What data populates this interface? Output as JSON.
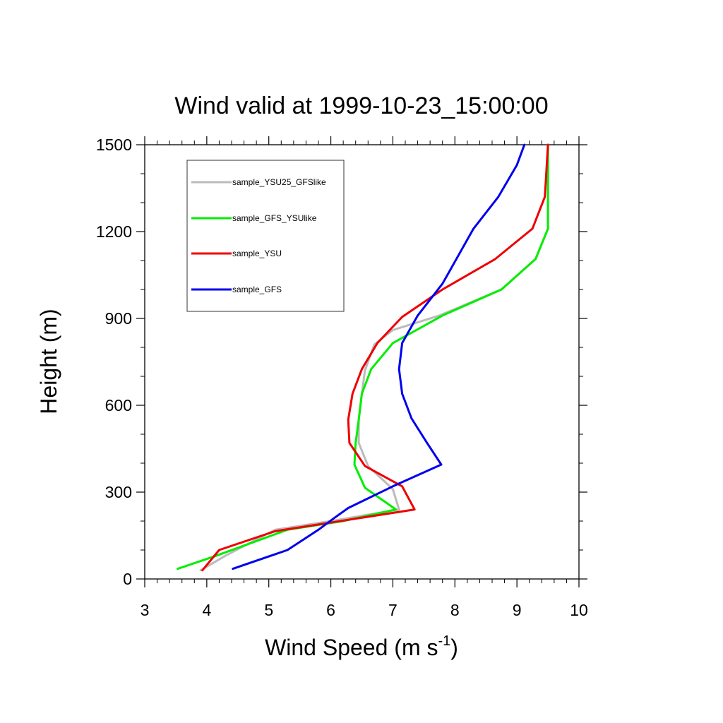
{
  "chart_data": {
    "type": "line",
    "title": "Wind valid at 1999-10-23_15:00:00",
    "xlabel": "Wind Speed (m s",
    "xlabel_sup": "-1",
    "xlabel_end": ")",
    "ylabel": "Height (m)",
    "xlim": [
      3,
      10
    ],
    "ylim": [
      0,
      1500
    ],
    "xticks": [
      "3",
      "4",
      "5",
      "6",
      "7",
      "8",
      "9",
      "10"
    ],
    "yticks": [
      "0",
      "300",
      "600",
      "900",
      "1200",
      "1500"
    ],
    "grid": false,
    "legend_position": "top-left",
    "series": [
      {
        "name": "sample_YSU25_GFSlike",
        "color": "#bbbbbb",
        "x": [
          3.9,
          4.3,
          5.1,
          6.0,
          7.1,
          7.0,
          6.6,
          6.45,
          6.45,
          6.5,
          6.55,
          6.7,
          7.0,
          7.75,
          8.75,
          9.3,
          9.5,
          9.5,
          9.5
        ],
        "y": [
          30,
          80,
          170,
          200,
          240,
          310,
          390,
          470,
          550,
          640,
          720,
          810,
          860,
          910,
          1000,
          1105,
          1210,
          1320,
          1500
        ]
      },
      {
        "name": "sample_GFS_YSUlike",
        "color": "#00ee00",
        "x": [
          3.53,
          4.15,
          5.3,
          6.2,
          7.05,
          6.55,
          6.38,
          6.4,
          6.45,
          6.5,
          6.65,
          7.0,
          7.8,
          8.75,
          9.3,
          9.5,
          9.5
        ],
        "y": [
          35,
          80,
          170,
          200,
          240,
          315,
          395,
          470,
          550,
          640,
          725,
          815,
          910,
          1000,
          1105,
          1210,
          1500
        ]
      },
      {
        "name": "sample_YSU",
        "color": "#ee0000",
        "x": [
          3.93,
          4.2,
          5.1,
          7.35,
          7.15,
          6.55,
          6.3,
          6.28,
          6.35,
          6.5,
          6.75,
          7.15,
          7.8,
          8.65,
          9.25,
          9.45,
          9.5
        ],
        "y": [
          30,
          100,
          165,
          240,
          320,
          390,
          470,
          550,
          640,
          725,
          815,
          905,
          1000,
          1105,
          1210,
          1320,
          1500
        ]
      },
      {
        "name": "sample_GFS",
        "color": "#0000ee",
        "x": [
          4.42,
          5.3,
          5.8,
          6.05,
          6.28,
          7.0,
          7.78,
          7.55,
          7.3,
          7.15,
          7.1,
          7.15,
          7.4,
          7.8,
          8.3,
          8.7,
          9.0,
          9.12
        ],
        "y": [
          35,
          100,
          170,
          210,
          245,
          320,
          395,
          470,
          555,
          640,
          725,
          815,
          910,
          1020,
          1210,
          1320,
          1430,
          1500
        ]
      }
    ]
  }
}
